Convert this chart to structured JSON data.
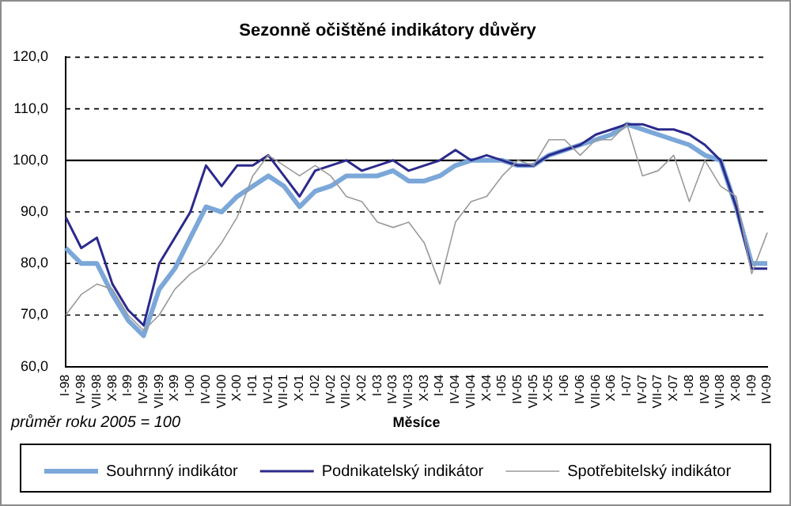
{
  "chart_data": {
    "type": "line",
    "title": "Sezonně očištěné indikátory důvěry",
    "xlabel": "Měsíce",
    "categories": [
      "I-98",
      "IV-98",
      "VII-98",
      "X-98",
      "I-99",
      "IV-99",
      "VII-99",
      "X-99",
      "I-00",
      "IV-00",
      "VII-00",
      "X-00",
      "I-01",
      "IV-01",
      "VII-01",
      "X-01",
      "I-02",
      "IV-02",
      "VII-02",
      "X-02",
      "I-03",
      "IV-03",
      "VII-03",
      "X-03",
      "I-04",
      "IV-04",
      "VII-04",
      "X-04",
      "I-05",
      "IV-05",
      "VII-05",
      "X-05",
      "I-06",
      "IV-06",
      "VII-06",
      "X-06",
      "I-07",
      "IV-07",
      "VII-07",
      "X-07",
      "I-08",
      "IV-08",
      "VII-08",
      "X-08",
      "I-09",
      "IV-09"
    ],
    "series": [
      {
        "name": "Souhrnný indikátor",
        "color": "#7ba7d9",
        "values": [
          83,
          80,
          80,
          74,
          69,
          66,
          75,
          79,
          85,
          91,
          90,
          93,
          95,
          97,
          95,
          91,
          94,
          95,
          97,
          97,
          97,
          98,
          96,
          96,
          97,
          99,
          100,
          100,
          100,
          99,
          99,
          101,
          102,
          103,
          104,
          105,
          107,
          106,
          105,
          104,
          103,
          101,
          100,
          91,
          80,
          80
        ]
      },
      {
        "name": "Podnikatelský indikátor",
        "color": "#2b2a8c",
        "values": [
          89,
          83,
          85,
          76,
          71,
          68,
          80,
          85,
          90,
          99,
          95,
          99,
          99,
          101,
          97,
          93,
          98,
          99,
          100,
          98,
          99,
          100,
          98,
          99,
          100,
          102,
          100,
          101,
          100,
          99,
          99,
          101,
          102,
          103,
          105,
          106,
          107,
          107,
          106,
          106,
          105,
          103,
          100,
          91,
          79,
          79
        ]
      },
      {
        "name": "Spotřebitelský indikátor",
        "color": "#9a9a9a",
        "values": [
          70,
          74,
          76,
          75,
          70,
          67,
          70,
          75,
          78,
          80,
          84,
          89,
          97,
          101,
          99,
          97,
          99,
          97,
          93,
          92,
          88,
          87,
          88,
          84,
          76,
          88,
          92,
          93,
          97,
          100,
          99,
          104,
          104,
          101,
          104,
          104,
          107,
          97,
          98,
          101,
          92,
          100,
          95,
          93,
          78,
          86
        ]
      }
    ],
    "ylim": [
      60,
      120
    ],
    "yticks": [
      {
        "value": 60,
        "label": "60,0"
      },
      {
        "value": 70,
        "label": "70,0"
      },
      {
        "value": 80,
        "label": "80,0"
      },
      {
        "value": 90,
        "label": "90,0"
      },
      {
        "value": 100,
        "label": "100,0"
      },
      {
        "value": 110,
        "label": "110,0"
      },
      {
        "value": 120,
        "label": "120,0"
      }
    ],
    "grid": "y",
    "legend": "bottom",
    "marker": "none",
    "line_style": "solid",
    "ref_lines": [
      {
        "axis": "y",
        "value": 100,
        "color": "#000000"
      }
    ],
    "annotations": [
      "průměr roku 2005 = 100"
    ]
  }
}
